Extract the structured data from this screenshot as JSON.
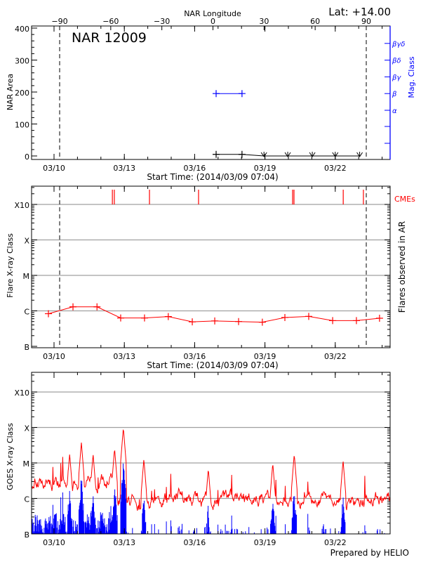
{
  "colors": {
    "axis": "#000000",
    "magclass": "#0000ff",
    "flare": "#ff0000",
    "cme": "#ff0000",
    "grid": "#a0a0a0",
    "goes_long": "#ff0000",
    "goes_short": "#0000ff"
  },
  "footer": "Prepared by HELIO",
  "chart_data": [
    {
      "type": "line",
      "title": "NAR 12009",
      "latitude_label": "Lat: +14.00",
      "xlabel": "Start Time: (2014/03/09 07:04)",
      "ylabel": "NAR Area",
      "ylabel_right": "Mag. Class",
      "top_axis_label": "NAR Longitude",
      "top_ticks": [
        "-90",
        "-60",
        "-30",
        "0",
        "30",
        "60",
        "90"
      ],
      "xticks": [
        "03/10",
        "03/13",
        "03/16",
        "03/19",
        "03/22"
      ],
      "yticks": [
        "0",
        "100",
        "200",
        "300",
        "400"
      ],
      "ylim": [
        0,
        400
      ],
      "limb_crossings_longitude": [
        -90,
        90
      ],
      "mag_class_ticks": [
        "α",
        "β",
        "βγ",
        "βδ",
        "βγδ"
      ],
      "area_series": [
        {
          "t": "03/16 22:00",
          "v": 5
        },
        {
          "t": "03/18 00:30",
          "v": 5
        },
        {
          "t": "03/18 23:00",
          "v": 0
        },
        {
          "t": "03/19 23:20",
          "v": 0
        },
        {
          "t": "03/21 00:30",
          "v": 0
        },
        {
          "t": "03/22 00:00",
          "v": 0
        },
        {
          "t": "03/23 01:00",
          "v": 0
        }
      ],
      "mag_class_series": [
        {
          "t": "03/16 22:00",
          "v": "β"
        },
        {
          "t": "03/18 00:30",
          "v": "β"
        }
      ]
    },
    {
      "type": "line",
      "xlabel": "Start Time: (2014/03/09 07:04)",
      "ylabel": "Flare X-ray Class",
      "ylabel_right": "Flares observed in AR",
      "cme_label": "CMEs",
      "xticks": [
        "03/10",
        "03/13",
        "03/16",
        "03/19",
        "03/22"
      ],
      "yticks": [
        "B",
        "C",
        "M",
        "X",
        "X10"
      ],
      "ylim": [
        "B1",
        "X10+"
      ],
      "yscale": "log",
      "grid": true,
      "flares": [
        {
          "t": "03/09 18:15",
          "class": "B8.3"
        },
        {
          "t": "03/10 19:25",
          "class": "C1.3"
        },
        {
          "t": "03/11 20:00",
          "class": "C1.3"
        },
        {
          "t": "03/12 20:15",
          "class": "B6.3"
        },
        {
          "t": "03/13 20:40",
          "class": "B6.3"
        },
        {
          "t": "03/14 21:00",
          "class": "B6.9"
        },
        {
          "t": "03/15 21:35",
          "class": "B4.9"
        },
        {
          "t": "03/16 20:35",
          "class": "B5.2"
        },
        {
          "t": "03/17 21:00",
          "class": "B5.0"
        },
        {
          "t": "03/18 21:20",
          "class": "B4.8"
        },
        {
          "t": "03/19 20:25",
          "class": "B6.5"
        },
        {
          "t": "03/20 20:50",
          "class": "B7.0"
        },
        {
          "t": "03/21 21:20",
          "class": "B5.3"
        },
        {
          "t": "03/22 21:40",
          "class": "B5.3"
        },
        {
          "t": "03/23 21:20",
          "class": "B6.2"
        }
      ],
      "cmes": [
        "03/12 11:45",
        "03/12 13:45",
        "03/14 01:45",
        "03/16 04:00",
        "03/20 04:20",
        "03/20 05:45",
        "03/22 08:10",
        "03/23 04:50"
      ]
    },
    {
      "type": "line",
      "ylabel": "GOES X-ray Class",
      "xticks": [
        "03/10",
        "03/13",
        "03/16",
        "03/19",
        "03/22"
      ],
      "yticks": [
        "B",
        "C",
        "M",
        "X",
        "X10"
      ],
      "yscale": "log",
      "grid": true,
      "series": [
        {
          "channel": "long",
          "peaks": [
            {
              "t": "03/10 16:00",
              "class": "M1.8"
            },
            {
              "t": "03/11 04:00",
              "class": "M3.8"
            },
            {
              "t": "03/11 16:00",
              "class": "M1.8"
            },
            {
              "t": "03/12 14:00",
              "class": "M2.6"
            },
            {
              "t": "03/12 23:00",
              "class": "X1.0"
            },
            {
              "t": "03/13 20:00",
              "class": "M1.3"
            },
            {
              "t": "03/16 14:00",
              "class": "C7.0"
            },
            {
              "t": "03/19 08:00",
              "class": "M1.0"
            },
            {
              "t": "03/20 06:00",
              "class": "M1.8"
            },
            {
              "t": "03/22 08:00",
              "class": "M1.2"
            }
          ]
        },
        {
          "channel": "short"
        }
      ]
    }
  ]
}
